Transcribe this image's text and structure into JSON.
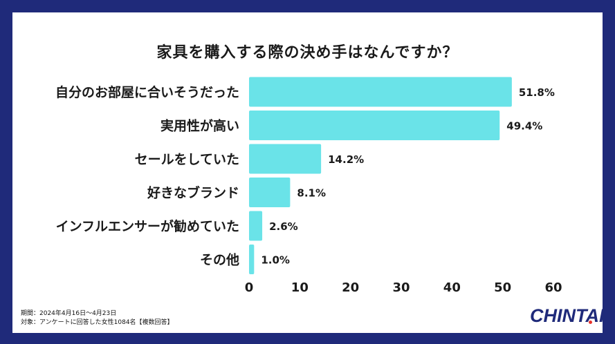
{
  "chart_data": {
    "type": "bar",
    "orientation": "horizontal",
    "title": "家具を購入する際の決め手はなんですか？",
    "categories": [
      "自分のお部屋に合いそうだった",
      "実用性が高い",
      "セールをしていた",
      "好きなブランド",
      "インフルエンサーが勧めていた",
      "その他"
    ],
    "values": [
      51.8,
      49.4,
      14.2,
      8.1,
      2.6,
      1.0
    ],
    "value_labels": [
      "51.8%",
      "49.4%",
      "14.2%",
      "8.1%",
      "2.6%",
      "1.0%"
    ],
    "xlim": [
      0,
      60
    ],
    "xticks": [
      "0",
      "10",
      "20",
      "30",
      "40",
      "50",
      "60"
    ],
    "bar_color": "#6ae3e8",
    "grid": false
  },
  "footer": {
    "period": "期間：2024年4月16日〜4月23日",
    "target": "対象：アンケートに回答した女性1084名【複数回答】"
  },
  "brand": {
    "logo_text": "CHINTAI",
    "frame_color": "#1f2a7a",
    "dot_color": "#e8322b"
  }
}
